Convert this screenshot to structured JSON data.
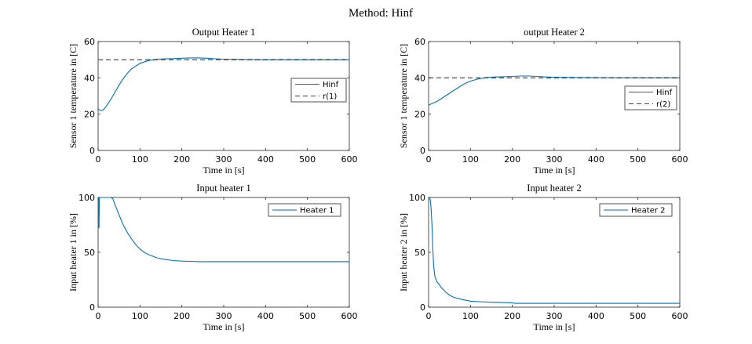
{
  "figure": {
    "title": "Method: Hinf"
  },
  "chart_data": [
    {
      "type": "line",
      "title": "Output Heater 1",
      "xlabel": "Time in [s]",
      "ylabel": "Sensor 1 temperature in [C]",
      "xlim": [
        0,
        600
      ],
      "ylim": [
        0,
        60
      ],
      "xticks": [
        0,
        100,
        200,
        300,
        400,
        500,
        600
      ],
      "yticks": [
        0,
        20,
        40,
        60
      ],
      "grid": false,
      "legend_position": "right",
      "series": [
        {
          "name": "Hinf",
          "color": "#0072BD",
          "dash": "solid",
          "x": [
            0,
            5,
            10,
            15,
            20,
            30,
            40,
            50,
            60,
            70,
            80,
            90,
            100,
            120,
            140,
            160,
            180,
            200,
            220,
            240,
            260,
            280,
            300,
            350,
            400,
            450,
            500,
            550,
            600
          ],
          "y": [
            23,
            22,
            22,
            23,
            24.5,
            28,
            32,
            36,
            39.5,
            42.5,
            45,
            46.5,
            48,
            49.5,
            50.2,
            50.5,
            50.6,
            50.8,
            51,
            51,
            50.8,
            50.5,
            50.3,
            50.1,
            50,
            50,
            50,
            50,
            50
          ]
        },
        {
          "name": "r(1)",
          "color": "#000000",
          "dash": "dashed",
          "x": [
            0,
            600
          ],
          "y": [
            50,
            50
          ]
        }
      ]
    },
    {
      "type": "line",
      "title": "output Heater 2",
      "xlabel": "Time in [s]",
      "ylabel": "Sensor 1 temperature in [C]",
      "xlim": [
        0,
        600
      ],
      "ylim": [
        0,
        60
      ],
      "xticks": [
        0,
        100,
        200,
        300,
        400,
        500,
        600
      ],
      "yticks": [
        0,
        20,
        40,
        60
      ],
      "grid": false,
      "legend_position": "right",
      "series": [
        {
          "name": "Hinf",
          "color": "#0072BD",
          "dash": "solid",
          "x": [
            0,
            10,
            20,
            30,
            40,
            50,
            60,
            70,
            80,
            90,
            100,
            120,
            140,
            160,
            180,
            200,
            220,
            240,
            260,
            280,
            300,
            350,
            400,
            450,
            500,
            550,
            600
          ],
          "y": [
            25,
            26,
            27,
            28.5,
            30,
            31.5,
            33,
            34.5,
            36,
            37.2,
            38.2,
            39.5,
            40.2,
            40.5,
            40.6,
            40.8,
            41,
            41,
            40.8,
            40.5,
            40.3,
            40.2,
            40.1,
            40,
            40,
            40,
            40
          ]
        },
        {
          "name": "r(2)",
          "color": "#000000",
          "dash": "dashed",
          "x": [
            0,
            600
          ],
          "y": [
            40,
            40
          ]
        }
      ]
    },
    {
      "type": "line",
      "title": "Input heater 1",
      "xlabel": "Time in [s]",
      "ylabel": "Input heater 1 in [%]",
      "xlim": [
        0,
        600
      ],
      "ylim": [
        0,
        100
      ],
      "xticks": [
        0,
        100,
        200,
        300,
        400,
        500,
        600
      ],
      "yticks": [
        0,
        50,
        100
      ],
      "grid": false,
      "legend_position": "top-right",
      "series": [
        {
          "name": "Heater 1",
          "color": "#0072BD",
          "dash": "solid",
          "x": [
            0,
            1,
            2,
            3,
            4,
            5,
            8,
            10,
            20,
            30,
            35,
            40,
            50,
            60,
            70,
            80,
            90,
            100,
            110,
            120,
            140,
            160,
            180,
            200,
            220,
            240,
            300,
            400,
            500,
            600
          ],
          "y": [
            75,
            100,
            72,
            100,
            100,
            100,
            100,
            100,
            100,
            100,
            99,
            94,
            84,
            75,
            68,
            62,
            57,
            53,
            50,
            48,
            45,
            43.5,
            42.5,
            42,
            41.8,
            41.5,
            41.5,
            41.5,
            41.5,
            41.5
          ]
        }
      ]
    },
    {
      "type": "line",
      "title": "Input heater 2",
      "xlabel": "Time in [s]",
      "ylabel": "Input heater 2 in [%]",
      "xlim": [
        0,
        600
      ],
      "ylim": [
        0,
        100
      ],
      "xticks": [
        0,
        100,
        200,
        300,
        400,
        500,
        600
      ],
      "yticks": [
        0,
        50,
        100
      ],
      "grid": false,
      "legend_position": "top-right",
      "series": [
        {
          "name": "Heater 2",
          "color": "#0072BD",
          "dash": "solid",
          "x": [
            0,
            2,
            4,
            6,
            8,
            10,
            12,
            15,
            20,
            25,
            30,
            40,
            50,
            60,
            80,
            100,
            120,
            150,
            200,
            205,
            250,
            300,
            400,
            500,
            600
          ],
          "y": [
            100,
            100,
            98,
            90,
            75,
            55,
            38,
            28,
            23,
            21,
            18,
            14,
            11,
            9,
            7,
            5.5,
            5,
            4.5,
            4,
            3.5,
            3.5,
            3.5,
            3.5,
            3.5,
            3.5
          ]
        }
      ]
    }
  ]
}
